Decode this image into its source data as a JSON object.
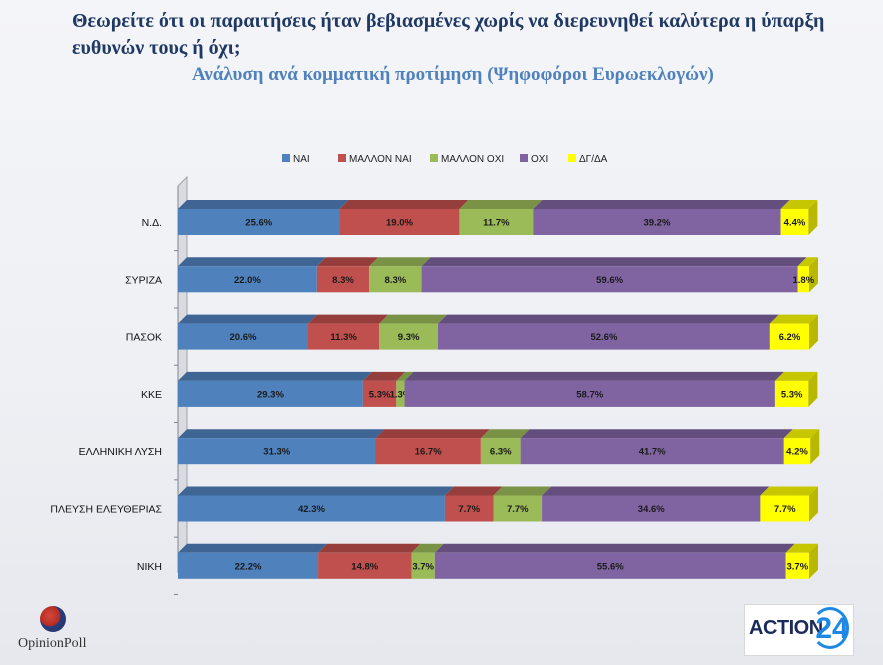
{
  "title": "Θεωρείτε ότι οι παραιτήσεις ήταν βεβιασμένες χωρίς να διερευνηθεί καλύτερα η ύπαρξη ευθυνών τους ή όχι;",
  "subtitle": "Ανάλυση ανά κομματική προτίμηση (Ψηφοφόροι Ευρωεκλογών)",
  "logos": {
    "left": "OpinionPoll",
    "right_text": "ACTION",
    "right_num": "24"
  },
  "chart_data": {
    "type": "bar",
    "orientation": "horizontal",
    "stacked": true,
    "percent": true,
    "legend_position": "top",
    "categories": [
      "Ν.Δ.",
      "ΣΥΡΙΖΑ",
      "ΠΑΣΟΚ",
      "ΚΚΕ",
      "ΕΛΛΗΝΙΚΗ ΛΥΣΗ",
      "ΠΛΕΥΣΗ ΕΛΕΥΘΕΡΙΑΣ",
      "ΝΙΚΗ"
    ],
    "series": [
      {
        "name": "ΝΑΙ",
        "color": "#4f81bd",
        "values": [
          25.6,
          22.0,
          20.6,
          29.3,
          31.3,
          42.3,
          22.2
        ]
      },
      {
        "name": "ΜΑΛΛΟΝ ΝΑΙ",
        "color": "#c0504d",
        "values": [
          19.0,
          8.3,
          11.3,
          5.3,
          16.7,
          7.7,
          14.8
        ]
      },
      {
        "name": "ΜΑΛΛΟΝ ΟΧΙ",
        "color": "#9bbb59",
        "values": [
          11.7,
          8.3,
          9.3,
          1.3,
          6.3,
          7.7,
          3.7
        ]
      },
      {
        "name": "ΟΧΙ",
        "color": "#8064a2",
        "values": [
          39.2,
          59.6,
          52.6,
          58.7,
          41.7,
          34.6,
          55.6
        ]
      },
      {
        "name": "ΔΓ/ΔΑ",
        "color": "#ffff00",
        "values": [
          4.4,
          1.8,
          6.2,
          5.3,
          4.2,
          7.7,
          3.7
        ]
      }
    ],
    "xlim": [
      0,
      100
    ]
  }
}
